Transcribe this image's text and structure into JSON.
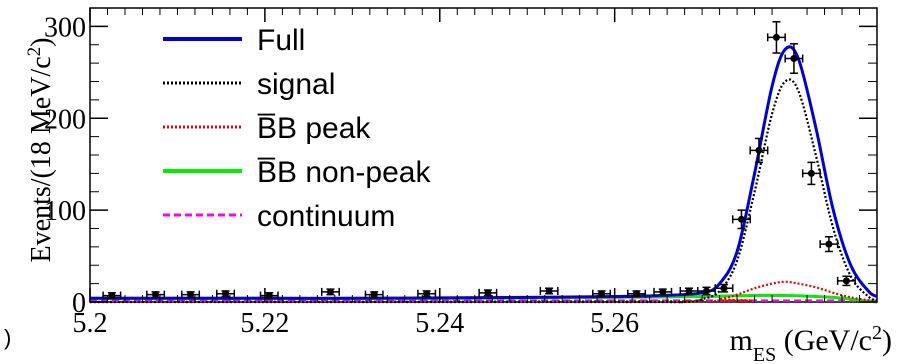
{
  "corner_mark": ")",
  "chart_data": {
    "type": "line",
    "title": "",
    "xlabel": "m_ES (GeV/c^2)",
    "ylabel": "Events/(18 MeV/c^2)",
    "xlim": [
      5.2,
      5.29
    ],
    "ylim": [
      0,
      320
    ],
    "grid": false,
    "legend_position": "top-left",
    "x_ticks": [
      5.2,
      5.22,
      5.24,
      5.26
    ],
    "x_tick_labels": [
      "5.2",
      "5.22",
      "5.24",
      "5.26"
    ],
    "y_ticks": [
      0,
      100,
      200,
      300
    ],
    "y_tick_labels": [
      "0",
      "100",
      "200",
      "300"
    ],
    "series": [
      {
        "name": "Full",
        "style": "solid",
        "color": "#0000dd",
        "x": [
          5.2,
          5.21,
          5.22,
          5.23,
          5.24,
          5.25,
          5.26,
          5.265,
          5.27,
          5.272,
          5.274,
          5.276,
          5.278,
          5.2795,
          5.281,
          5.283,
          5.285,
          5.287,
          5.289,
          5.29
        ],
        "y": [
          4,
          4,
          4,
          4,
          4.5,
          5,
          6,
          7,
          10,
          20,
          55,
          140,
          235,
          275,
          265,
          190,
          100,
          40,
          12,
          6
        ]
      },
      {
        "name": "signal",
        "style": "dotted",
        "color": "#000000",
        "x": [
          5.2,
          5.26,
          5.268,
          5.27,
          5.272,
          5.274,
          5.276,
          5.278,
          5.2795,
          5.281,
          5.283,
          5.285,
          5.287,
          5.289,
          5.29
        ],
        "y": [
          0,
          0,
          0,
          3,
          12,
          45,
          120,
          205,
          240,
          230,
          160,
          80,
          28,
          6,
          2
        ]
      },
      {
        "name": "B̅B peak",
        "style": "dotted",
        "color": "#ee0000",
        "x": [
          5.2,
          5.27,
          5.272,
          5.274,
          5.276,
          5.278,
          5.2795,
          5.281,
          5.283,
          5.285,
          5.287,
          5.289,
          5.29
        ],
        "y": [
          0,
          1,
          3,
          8,
          15,
          20,
          22,
          20,
          16,
          10,
          5,
          2,
          1
        ]
      },
      {
        "name": "B̅B non-peak",
        "style": "solid",
        "color": "#00ee00",
        "x": [
          5.2,
          5.22,
          5.24,
          5.26,
          5.27,
          5.275,
          5.28,
          5.285,
          5.288,
          5.29
        ],
        "y": [
          4,
          4,
          4,
          5,
          6,
          7,
          7,
          5,
          2,
          0
        ]
      },
      {
        "name": "continuum",
        "style": "dashed",
        "color": "#ff00ff",
        "x": [
          5.2,
          5.22,
          5.24,
          5.26,
          5.28,
          5.29
        ],
        "y": [
          1.5,
          1.5,
          1.5,
          1.5,
          1.5,
          1.5
        ]
      }
    ],
    "points": {
      "x": [
        5.2025,
        5.2075,
        5.2115,
        5.2155,
        5.2205,
        5.2275,
        5.2325,
        5.2385,
        5.2455,
        5.2525,
        5.2585,
        5.2625,
        5.2655,
        5.2685,
        5.2705,
        5.2725,
        5.2745,
        5.2765,
        5.2785,
        5.2805,
        5.2825,
        5.2845,
        5.2865
      ],
      "y": [
        7,
        8,
        8,
        9,
        7,
        11,
        8,
        9,
        10,
        12,
        9,
        9,
        11,
        12,
        12,
        15,
        90,
        165,
        288,
        265,
        140,
        63,
        23
      ],
      "yerr": [
        3,
        3,
        3,
        3,
        3,
        3,
        3,
        3,
        3,
        3,
        3,
        3,
        3,
        3,
        4,
        4,
        10,
        13,
        17,
        16,
        12,
        8,
        5
      ],
      "xerr": 0.001
    },
    "legend": [
      {
        "label": "Full",
        "color": "#0000dd",
        "style": "solid"
      },
      {
        "label": "signal",
        "color": "#000000",
        "style": "dotted"
      },
      {
        "label": "B̅B peak",
        "color": "#ee0000",
        "style": "dotted"
      },
      {
        "label": "B̅B non-peak",
        "color": "#00ee00",
        "style": "solid"
      },
      {
        "label": "continuum",
        "color": "#ff00ff",
        "style": "dashed"
      }
    ]
  }
}
